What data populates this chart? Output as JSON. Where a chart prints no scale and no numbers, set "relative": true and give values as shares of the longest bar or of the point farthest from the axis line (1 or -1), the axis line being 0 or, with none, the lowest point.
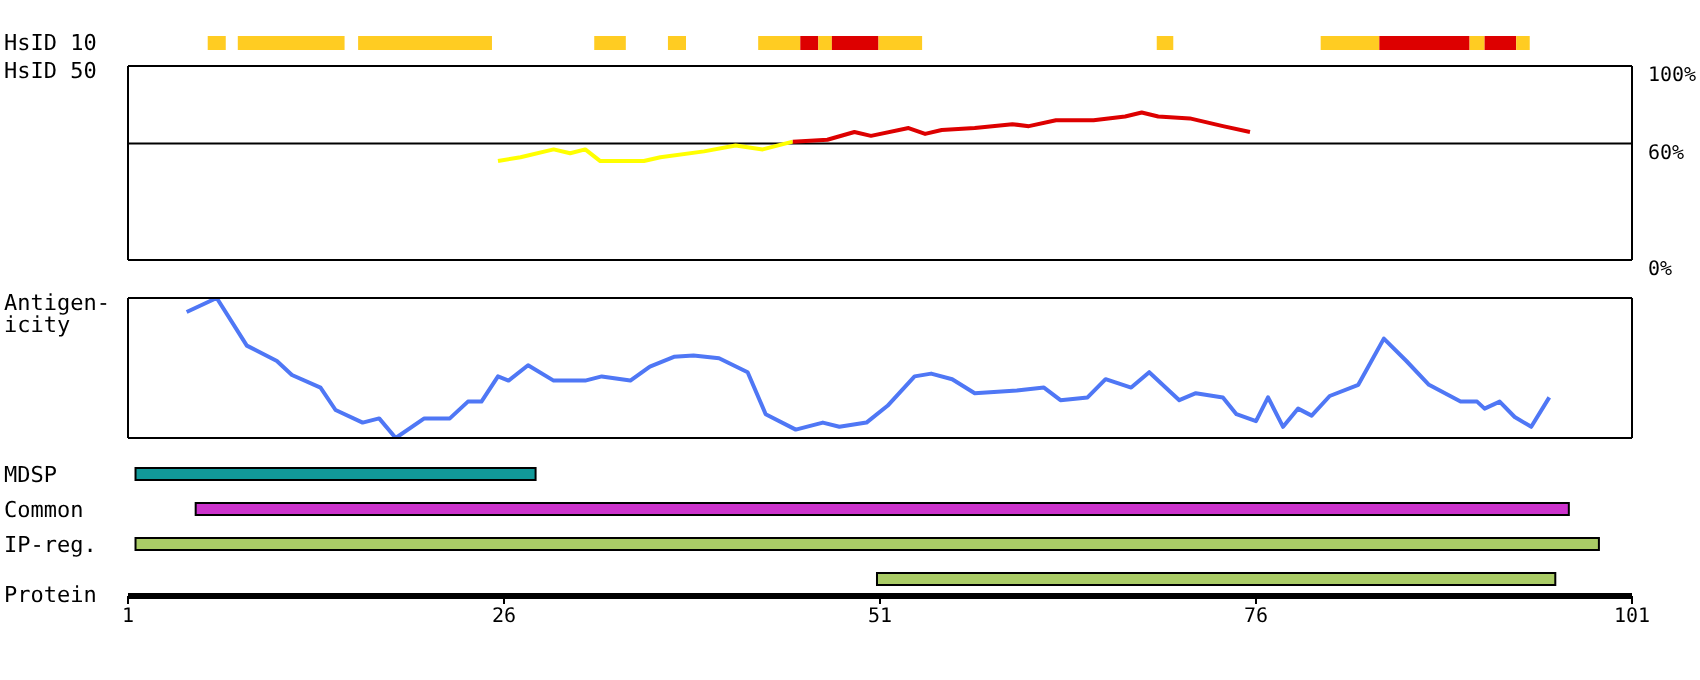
{
  "chart_data": [
    {
      "type": "bar",
      "orientation": "horizontal",
      "categories": [
        "HsID 10"
      ],
      "xlim": [
        1,
        101
      ],
      "tick_labels": "y",
      "series": [
        {
          "color": "#ffcc22",
          "values": [
            1.2
          ],
          "base": [
            6.3
          ]
        },
        {
          "color": "#ffcc22",
          "values": [
            7.1
          ],
          "base": [
            8.3
          ]
        },
        {
          "color": "#ffcc22",
          "values": [
            8.9
          ],
          "base": [
            16.3
          ]
        },
        {
          "color": "#ffcc22",
          "values": [
            2.1
          ],
          "base": [
            32.0
          ]
        },
        {
          "color": "#ffcc22",
          "values": [
            1.2
          ],
          "base": [
            36.9
          ]
        },
        {
          "color": "#ffcc22",
          "values": [
            2.8
          ],
          "base": [
            42.9
          ]
        },
        {
          "color": "#dd0000",
          "values": [
            1.2
          ],
          "base": [
            45.7
          ]
        },
        {
          "color": "#ffcc22",
          "values": [
            0.9
          ],
          "base": [
            46.9
          ]
        },
        {
          "color": "#dd0000",
          "values": [
            3.1
          ],
          "base": [
            47.8
          ]
        },
        {
          "color": "#ffcc22",
          "values": [
            2.9
          ],
          "base": [
            50.9
          ]
        },
        {
          "color": "#ffcc22",
          "values": [
            1.1
          ],
          "base": [
            69.4
          ]
        },
        {
          "color": "#ffcc22",
          "values": [
            3.9
          ],
          "base": [
            80.3
          ]
        },
        {
          "color": "#dd0000",
          "values": [
            6.0
          ],
          "base": [
            84.2
          ]
        },
        {
          "color": "#ffcc22",
          "values": [
            1.0
          ],
          "base": [
            90.2
          ]
        },
        {
          "color": "#dd0000",
          "values": [
            2.1
          ],
          "base": [
            91.2
          ]
        },
        {
          "color": "#ffcc22",
          "values": [
            0.9
          ],
          "base": [
            93.3
          ]
        }
      ]
    },
    {
      "type": "line",
      "ylabel": "HsID 50",
      "xlim": [
        1,
        101
      ],
      "ylim": [
        0,
        100
      ],
      "yticks": [
        {
          "value": 0,
          "label": "0%"
        },
        {
          "value": 60,
          "label": "60%"
        },
        {
          "value": 100,
          "label": "100%"
        }
      ],
      "tick_labels": "y",
      "marker": "none",
      "ref_lines": [
        {
          "axis": "y",
          "value": 60,
          "color": "#000000"
        }
      ],
      "series": [
        {
          "color": "#ffff00",
          "x": [
            25.6,
            27.1,
            29.3,
            30.4,
            31.4,
            32.4,
            35.3,
            36.4,
            39.3,
            41.4,
            43.2,
            45.2
          ],
          "values": [
            51,
            53,
            57,
            55,
            57,
            51,
            51,
            53,
            56,
            59,
            57,
            61
          ]
        },
        {
          "color": "#dd0000",
          "x": [
            45.2,
            47.5,
            49.3,
            50.4,
            52.9,
            54.0,
            55.1,
            57.3,
            59.8,
            60.9,
            62.7,
            65.2,
            67.3,
            68.4,
            69.5,
            71.6,
            73.8,
            75.6
          ],
          "values": [
            61,
            62,
            66,
            64,
            68,
            65,
            67,
            68,
            70,
            69,
            72,
            72,
            74,
            76,
            74,
            73,
            69,
            66
          ]
        }
      ]
    },
    {
      "type": "line",
      "ylabel": "Antigen-\nicity",
      "relative": true,
      "xlim": [
        1,
        101
      ],
      "tick_labels": false,
      "marker": "none",
      "series": [
        {
          "color": "#4f77f5",
          "x": [
            4.9,
            6.9,
            8.9,
            10.9,
            11.9,
            13.8,
            14.8,
            16.6,
            17.7,
            18.8,
            20.7,
            22.4,
            23.6,
            24.5,
            25.6,
            26.3,
            27.6,
            29.3,
            31.4,
            32.5,
            34.4,
            35.7,
            37.3,
            38.6,
            40.3,
            42.2,
            43.4,
            45.4,
            47.2,
            48.3,
            50.1,
            51.5,
            53.3,
            54.4,
            55.8,
            57.3,
            60.1,
            61.9,
            63.0,
            64.8,
            66.0,
            67.7,
            68.9,
            70.9,
            72.0,
            73.8,
            74.7,
            76.0,
            76.8,
            77.8,
            78.8,
            79.7,
            80.9,
            82.8,
            84.5,
            86.0,
            87.5,
            89.6,
            90.7,
            91.2,
            92.2,
            93.2,
            94.3,
            95.5
          ],
          "values": [
            0.9,
            1,
            0.66,
            0.55,
            0.45,
            0.36,
            0.2,
            0.11,
            0.14,
            0,
            0.14,
            0.14,
            0.26,
            0.26,
            0.44,
            0.41,
            0.52,
            0.41,
            0.41,
            0.44,
            0.41,
            0.51,
            0.58,
            0.59,
            0.57,
            0.47,
            0.17,
            0.06,
            0.11,
            0.08,
            0.11,
            0.23,
            0.44,
            0.46,
            0.42,
            0.32,
            0.34,
            0.36,
            0.27,
            0.29,
            0.42,
            0.36,
            0.47,
            0.27,
            0.32,
            0.29,
            0.17,
            0.12,
            0.29,
            0.08,
            0.21,
            0.16,
            0.3,
            0.38,
            0.71,
            0.55,
            0.38,
            0.26,
            0.26,
            0.21,
            0.26,
            0.15,
            0.08,
            0.29
          ]
        }
      ]
    },
    {
      "type": "bar",
      "orientation": "horizontal",
      "categories": [
        "MDSP",
        "Common",
        "IP-reg.",
        null
      ],
      "xlabel": "Protein",
      "xlim": [
        1,
        101
      ],
      "xticks": [
        1,
        26,
        51,
        76,
        101
      ],
      "values": [
        26.6,
        91.3,
        97.3,
        45.1
      ],
      "base": [
        1.5,
        5.5,
        1.5,
        50.8
      ],
      "colors": [
        "#119999",
        "#cc33cc",
        "#aacc66",
        "#aacc66"
      ]
    }
  ]
}
